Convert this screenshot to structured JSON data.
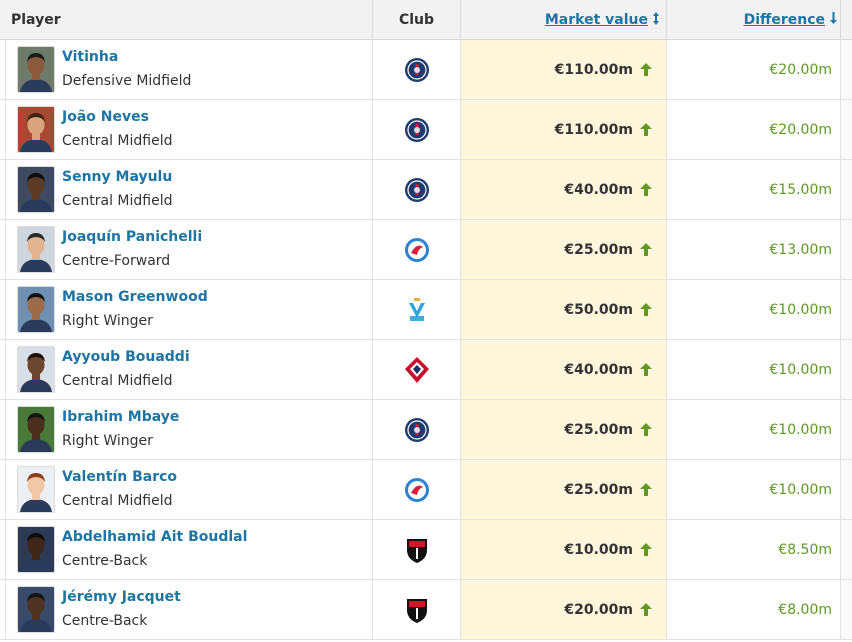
{
  "header": {
    "player": "Player",
    "club": "Club",
    "market_value": "Market value",
    "difference": "Difference",
    "sort_mv_icon": "sort-both-icon",
    "sort_diff_icon": "sort-down-arrow-icon"
  },
  "colors": {
    "link": "#1d75a3",
    "positive": "#5f9a25",
    "highlight": "#fff6dc"
  },
  "rows": [
    {
      "name": "Vitinha",
      "position": "Defensive Midfield",
      "club_icon": "psg-crest-icon",
      "value": "€110.00m",
      "trend_icon": "arrow-up-icon",
      "difference": "€20.00m"
    },
    {
      "name": "João Neves",
      "position": "Central Midfield",
      "club_icon": "psg-crest-icon",
      "value": "€110.00m",
      "trend_icon": "arrow-up-icon",
      "difference": "€20.00m"
    },
    {
      "name": "Senny Mayulu",
      "position": "Central Midfield",
      "club_icon": "psg-crest-icon",
      "value": "€40.00m",
      "trend_icon": "arrow-up-icon",
      "difference": "€15.00m"
    },
    {
      "name": "Joaquín Panichelli",
      "position": "Centre-Forward",
      "club_icon": "strasbourg-crest-icon",
      "value": "€25.00m",
      "trend_icon": "arrow-up-icon",
      "difference": "€13.00m"
    },
    {
      "name": "Mason Greenwood",
      "position": "Right Winger",
      "club_icon": "marseille-crest-icon",
      "value": "€50.00m",
      "trend_icon": "arrow-up-icon",
      "difference": "€10.00m"
    },
    {
      "name": "Ayyoub Bouaddi",
      "position": "Central Midfield",
      "club_icon": "lille-crest-icon",
      "value": "€40.00m",
      "trend_icon": "arrow-up-icon",
      "difference": "€10.00m"
    },
    {
      "name": "Ibrahim Mbaye",
      "position": "Right Winger",
      "club_icon": "psg-crest-icon",
      "value": "€25.00m",
      "trend_icon": "arrow-up-icon",
      "difference": "€10.00m"
    },
    {
      "name": "Valentín Barco",
      "position": "Central Midfield",
      "club_icon": "strasbourg-crest-icon",
      "value": "€25.00m",
      "trend_icon": "arrow-up-icon",
      "difference": "€10.00m"
    },
    {
      "name": "Abdelhamid Ait Boudlal",
      "position": "Centre-Back",
      "club_icon": "rennes-crest-icon",
      "value": "€10.00m",
      "trend_icon": "arrow-up-icon",
      "difference": "€8.50m"
    },
    {
      "name": "Jérémy Jacquet",
      "position": "Centre-Back",
      "club_icon": "rennes-crest-icon",
      "value": "€20.00m",
      "trend_icon": "arrow-up-icon",
      "difference": "€8.00m"
    }
  ]
}
